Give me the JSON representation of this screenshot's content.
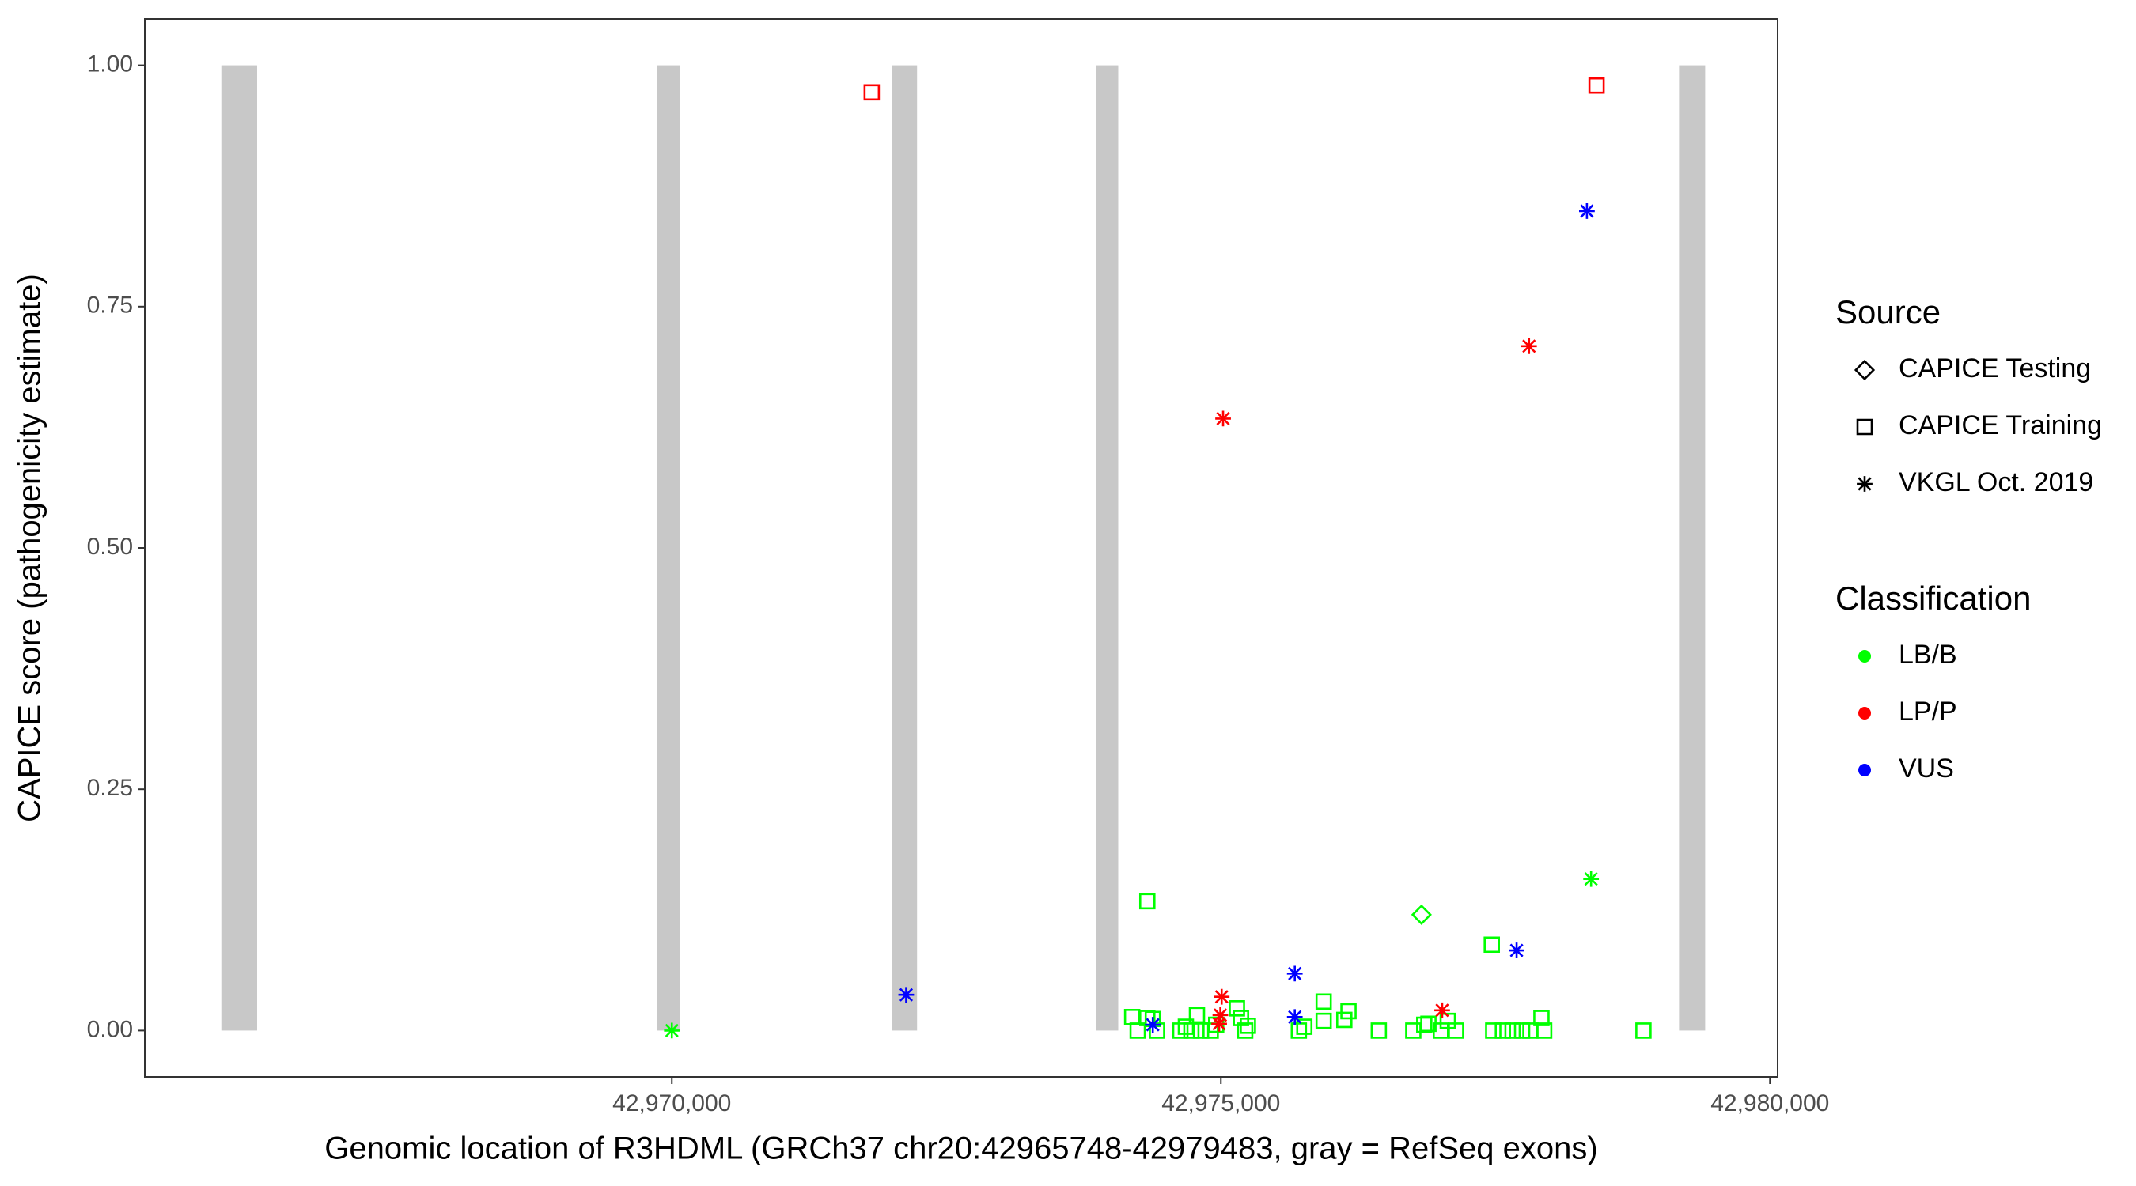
{
  "chart_data": {
    "type": "scatter",
    "x_label": "Genomic location of R3HDML (GRCh37 chr20:42965748-42979483, gray = RefSeq exons)",
    "y_label": "CAPICE score (pathogenicity estimate)",
    "xlim": [
      42965200,
      42980070
    ],
    "ylim": [
      -0.048,
      1.048
    ],
    "xticks": [
      {
        "value": 42970000,
        "label": "42,970,000"
      },
      {
        "value": 42975000,
        "label": "42,975,000"
      },
      {
        "value": 42980000,
        "label": "42,980,000"
      }
    ],
    "yticks": [
      {
        "value": 0,
        "label": "0.00"
      },
      {
        "value": 0.25,
        "label": "0.25"
      },
      {
        "value": 0.5,
        "label": "0.50"
      },
      {
        "value": 0.75,
        "label": "0.75"
      },
      {
        "value": 1,
        "label": "1.00"
      }
    ],
    "grid": false,
    "exon_color": "#c8c8c8",
    "exons": {
      "starts": [
        42965897,
        42969862,
        42972008,
        42973865,
        42979172
      ],
      "ends": [
        42966223,
        42970075,
        42972233,
        42974065,
        42979410
      ]
    },
    "legend": [
      {
        "title": "Source",
        "entries": [
          {
            "label": "CAPICE Testing",
            "shape": "diamond"
          },
          {
            "label": "CAPICE Training",
            "shape": "square"
          },
          {
            "label": "VKGL Oct. 2019",
            "shape": "asterisk"
          }
        ]
      },
      {
        "title": "Classification",
        "entries": [
          {
            "label": "LB/B",
            "color": "#00ff00"
          },
          {
            "label": "LP/P",
            "color": "#ff0000"
          },
          {
            "label": "VUS",
            "color": "#0000ff"
          }
        ]
      }
    ],
    "series": [
      {
        "source": 0,
        "class": 0,
        "x": [
          42976827
        ],
        "y": [
          0.12
        ]
      },
      {
        "source": 1,
        "class": 0,
        "x": [
          42974192,
          42974242,
          42974330,
          42974330,
          42974380,
          42974418,
          42974631,
          42974681,
          42974731,
          42974782,
          42974819,
          42974907,
          42974957,
          42975146,
          42975183,
          42975221,
          42975246,
          42975710,
          42975760,
          42975936,
          42975936,
          42976124,
          42976162,
          42976438,
          42976752,
          42976852,
          42976890,
          42977003,
          42977066,
          42977141,
          42977467,
          42977480,
          42977568,
          42977656,
          42977743,
          42977819,
          42977919,
          42977944,
          42978848
        ],
        "y": [
          0.014,
          0,
          0.134,
          0.013,
          0.012,
          0,
          0,
          0.004,
          0,
          0.016,
          0,
          0,
          0.006,
          0.023,
          0.013,
          0,
          0.005,
          0,
          0.004,
          0.03,
          0.01,
          0.011,
          0.02,
          0,
          0,
          0.006,
          0.007,
          0,
          0.01,
          0,
          0.089,
          0,
          0,
          0,
          0,
          0,
          0.013,
          0,
          0
        ]
      },
      {
        "source": 1,
        "class": 1,
        "x": [
          42971820,
          42978421
        ],
        "y": [
          0.972,
          0.979
        ]
      },
      {
        "source": 2,
        "class": 0,
        "x": [
          42970000,
          42978371
        ],
        "y": [
          0,
          0.157
        ]
      },
      {
        "source": 2,
        "class": 1,
        "x": [
          42975020,
          42977806,
          42975007,
          42974995,
          42974984,
          42977015
        ],
        "y": [
          0.634,
          0.709,
          0.035,
          0.016,
          0.007,
          0.021
        ]
      },
      {
        "source": 2,
        "class": 2,
        "x": [
          42978333,
          42972134,
          42974380,
          42975673,
          42975673,
          42977693
        ],
        "y": [
          0.849,
          0.037,
          0.006,
          0.059,
          0.014,
          0.083
        ]
      }
    ]
  }
}
